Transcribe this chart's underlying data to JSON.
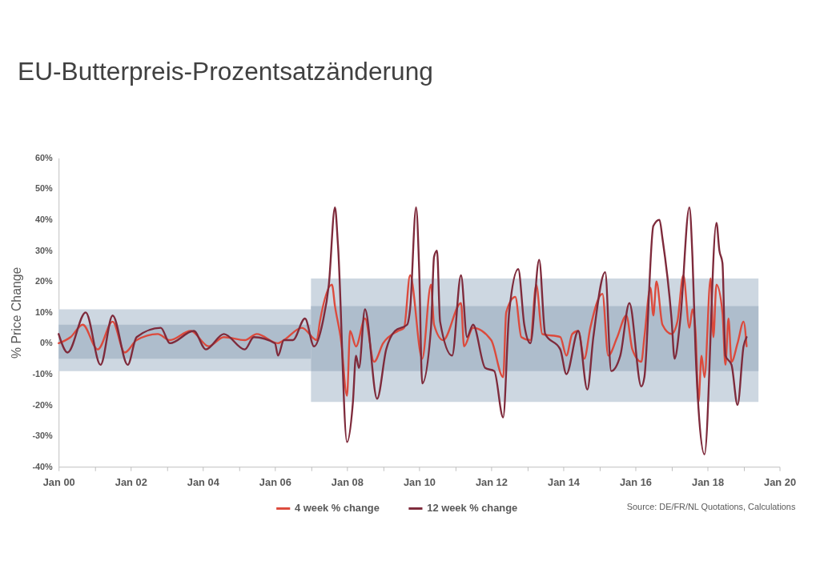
{
  "chart_data": {
    "type": "line",
    "title": "EU-Butterpreis-Prozentsatzänderung",
    "ylabel": "% Price Change",
    "annotations": [
      "Source: DE/FR/NL Quotations, Calculations"
    ],
    "xlim": [
      "2000-01",
      "2020-01"
    ],
    "xticks": [
      {
        "value": "2000-01",
        "label": "Jan 00"
      },
      {
        "value": "2001-01",
        "label": null
      },
      {
        "value": "2002-01",
        "label": "Jan 02"
      },
      {
        "value": "2003-01",
        "label": null
      },
      {
        "value": "2004-01",
        "label": "Jan 04"
      },
      {
        "value": "2005-01",
        "label": null
      },
      {
        "value": "2006-01",
        "label": "Jan 06"
      },
      {
        "value": "2007-01",
        "label": null
      },
      {
        "value": "2008-01",
        "label": "Jan 08"
      },
      {
        "value": "2009-01",
        "label": null
      },
      {
        "value": "2010-01",
        "label": "Jan 10"
      },
      {
        "value": "2011-01",
        "label": null
      },
      {
        "value": "2012-01",
        "label": "Jan 12"
      },
      {
        "value": "2013-01",
        "label": null
      },
      {
        "value": "2014-01",
        "label": "Jan 14"
      },
      {
        "value": "2015-01",
        "label": null
      },
      {
        "value": "2016-01",
        "label": "Jan 16"
      },
      {
        "value": "2017-01",
        "label": null
      },
      {
        "value": "2018-01",
        "label": "Jan 18"
      },
      {
        "value": "2019-01",
        "label": null
      },
      {
        "value": "2020-01",
        "label": "Jan 20"
      }
    ],
    "ylim": [
      -40,
      60
    ],
    "yticks": [
      {
        "value": -40,
        "label": "-40%"
      },
      {
        "value": -30,
        "label": "-30%"
      },
      {
        "value": -20,
        "label": "-20%"
      },
      {
        "value": -10,
        "label": "-10%"
      },
      {
        "value": 0,
        "label": "0%"
      },
      {
        "value": 10,
        "label": "10%"
      },
      {
        "value": 20,
        "label": "20%"
      },
      {
        "value": 30,
        "label": "30%"
      },
      {
        "value": 40,
        "label": "40%"
      },
      {
        "value": 50,
        "label": "50%"
      },
      {
        "value": 60,
        "label": "60%"
      }
    ],
    "grid": false,
    "legend": "bottom",
    "series": [
      {
        "type": "area",
        "color": "#cdd7e1",
        "x": [
          "2000-01",
          "2007-01"
        ],
        "values": [
          null,
          null
        ],
        "lower": [
          -9,
          -9
        ],
        "upper": [
          11,
          11
        ]
      },
      {
        "type": "area",
        "color": "#cdd7e1",
        "x": [
          "2007-01",
          "2019-06"
        ],
        "values": [
          null,
          null
        ],
        "lower": [
          -19,
          -19
        ],
        "upper": [
          21,
          21
        ]
      },
      {
        "type": "area",
        "color": "#aebdcc",
        "x": [
          "2000-01",
          "2007-01"
        ],
        "values": [
          null,
          null
        ],
        "lower": [
          -5,
          -5
        ],
        "upper": [
          6,
          6
        ]
      },
      {
        "type": "area",
        "color": "#aebdcc",
        "x": [
          "2007-01",
          "2019-06"
        ],
        "values": [
          null,
          null
        ],
        "lower": [
          -9,
          -9
        ],
        "upper": [
          12,
          12
        ]
      },
      {
        "type": "line",
        "name": "4 week % change",
        "color": "#dc4a3c",
        "x": [
          "2000-01",
          "2000-05",
          "2000-09",
          "2001-02",
          "2001-07",
          "2001-11",
          "2002-03",
          "2002-10",
          "2003-02",
          "2003-09",
          "2004-03",
          "2004-08",
          "2005-03",
          "2005-07",
          "2006-02",
          "2006-04",
          "2006-10",
          "2007-03",
          "2007-04",
          "2007-08",
          "2007-09",
          "2007-11",
          "2008-01",
          "2008-02",
          "2008-04",
          "2008-07",
          "2008-10",
          "2009-01",
          "2009-06",
          "2009-08",
          "2009-10",
          "2010-02",
          "2010-05",
          "2010-06",
          "2010-09",
          "2011-03",
          "2011-04",
          "2011-07",
          "2012-01",
          "2012-05",
          "2012-06",
          "2012-09",
          "2012-11",
          "2013-02",
          "2013-04",
          "2013-06",
          "2013-12",
          "2014-02",
          "2014-04",
          "2014-06",
          "2014-08",
          "2014-10",
          "2015-02",
          "2015-04",
          "2015-07",
          "2015-10",
          "2015-12",
          "2016-03",
          "2016-04",
          "2016-06",
          "2016-07",
          "2016-08",
          "2016-10",
          "2017-01",
          "2017-03",
          "2017-05",
          "2017-07",
          "2017-08",
          "2017-09",
          "2017-10",
          "2017-11",
          "2017-12",
          "2018-02",
          "2018-03",
          "2018-04",
          "2018-06",
          "2018-07",
          "2018-08",
          "2018-09",
          "2018-11",
          "2019-01",
          "2019-02"
        ],
        "values": [
          0,
          2,
          6,
          -2,
          7,
          -3,
          1,
          3,
          1,
          4,
          -1,
          2,
          1,
          3,
          0,
          1,
          5,
          1,
          7,
          19,
          12,
          1,
          -17,
          4,
          -1,
          8,
          -6,
          0,
          4,
          5,
          22,
          -5,
          19,
          6,
          1,
          13,
          -1,
          5,
          1,
          -11,
          10,
          15,
          2,
          1,
          19,
          3,
          2,
          -4,
          3,
          4,
          -5,
          5,
          16,
          -4,
          2,
          9,
          -2,
          -6,
          2,
          18,
          9,
          20,
          6,
          3,
          7,
          22,
          5,
          11,
          4,
          -19,
          -4,
          -11,
          21,
          2,
          19,
          10,
          -7,
          8,
          -6,
          0,
          7,
          -1
        ]
      },
      {
        "type": "line",
        "name": "12 week % change",
        "color": "#7e2a3b",
        "x": [
          "2000-01",
          "2000-04",
          "2000-10",
          "2001-03",
          "2001-07",
          "2001-12",
          "2002-03",
          "2002-11",
          "2003-02",
          "2003-10",
          "2004-02",
          "2004-08",
          "2005-03",
          "2005-06",
          "2006-01",
          "2006-02",
          "2006-04",
          "2006-07",
          "2006-11",
          "2007-02",
          "2007-05",
          "2007-07",
          "2007-09",
          "2007-10",
          "2008-01",
          "2008-03",
          "2008-04",
          "2008-05",
          "2008-07",
          "2008-11",
          "2009-02",
          "2009-05",
          "2009-09",
          "2009-10",
          "2009-12",
          "2010-01",
          "2010-02",
          "2010-05",
          "2010-06",
          "2010-07",
          "2010-08",
          "2010-12",
          "2011-03",
          "2011-05",
          "2011-07",
          "2011-11",
          "2012-02",
          "2012-05",
          "2012-07",
          "2012-10",
          "2012-12",
          "2013-02",
          "2013-05",
          "2013-07",
          "2013-12",
          "2014-02",
          "2014-06",
          "2014-09",
          "2014-11",
          "2015-03",
          "2015-05",
          "2015-08",
          "2015-11",
          "2016-03",
          "2016-04",
          "2016-07",
          "2016-09",
          "2016-10",
          "2017-01",
          "2017-02",
          "2017-04",
          "2017-07",
          "2017-08",
          "2017-09",
          "2017-10",
          "2017-12",
          "2018-04",
          "2018-05",
          "2018-06",
          "2018-07",
          "2018-09",
          "2018-11",
          "2019-01",
          "2019-02"
        ],
        "values": [
          3,
          -3,
          10,
          -7,
          9,
          -7,
          2,
          5,
          0,
          4,
          -2,
          3,
          -2,
          2,
          0,
          -4,
          1,
          1,
          8,
          -1,
          7,
          19,
          44,
          32,
          -32,
          -19,
          -4,
          -8,
          11,
          -18,
          -2,
          4,
          6,
          11,
          44,
          24,
          -13,
          5,
          28,
          30,
          7,
          -4,
          22,
          2,
          6,
          -8,
          -9,
          -24,
          10,
          24,
          6,
          0,
          27,
          3,
          -2,
          -10,
          4,
          -15,
          2,
          23,
          -9,
          -4,
          13,
          -14,
          -11,
          38,
          40,
          34,
          8,
          -5,
          8,
          44,
          28,
          -2,
          -21,
          -36,
          39,
          30,
          26,
          -4,
          -7,
          -20,
          -1,
          2
        ]
      }
    ]
  }
}
